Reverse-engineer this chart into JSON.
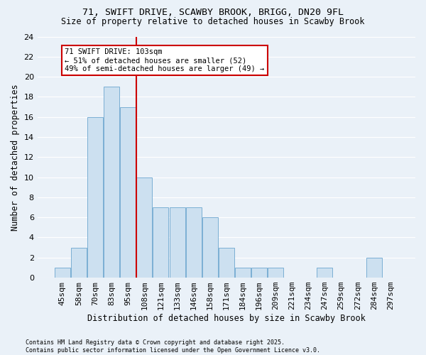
{
  "title1": "71, SWIFT DRIVE, SCAWBY BROOK, BRIGG, DN20 9FL",
  "title2": "Size of property relative to detached houses in Scawby Brook",
  "xlabel": "Distribution of detached houses by size in Scawby Brook",
  "ylabel": "Number of detached properties",
  "categories": [
    "45sqm",
    "58sqm",
    "70sqm",
    "83sqm",
    "95sqm",
    "108sqm",
    "121sqm",
    "133sqm",
    "146sqm",
    "158sqm",
    "171sqm",
    "184sqm",
    "196sqm",
    "209sqm",
    "221sqm",
    "234sqm",
    "247sqm",
    "259sqm",
    "272sqm",
    "284sqm",
    "297sqm"
  ],
  "values": [
    1,
    3,
    16,
    19,
    17,
    10,
    7,
    7,
    7,
    6,
    3,
    1,
    1,
    1,
    0,
    0,
    1,
    0,
    0,
    2,
    0
  ],
  "bar_color": "#cce0f0",
  "bar_edge_color": "#7bafd4",
  "vline_idx": 5,
  "vline_color": "#cc0000",
  "annotation_text": "71 SWIFT DRIVE: 103sqm\n← 51% of detached houses are smaller (52)\n49% of semi-detached houses are larger (49) →",
  "annotation_box_color": "#ffffff",
  "annotation_box_edge": "#cc0000",
  "ylim": [
    0,
    24
  ],
  "yticks": [
    0,
    2,
    4,
    6,
    8,
    10,
    12,
    14,
    16,
    18,
    20,
    22,
    24
  ],
  "footnote": "Contains HM Land Registry data © Crown copyright and database right 2025.\nContains public sector information licensed under the Open Government Licence v3.0.",
  "bg_color": "#eaf1f8",
  "grid_color": "#ffffff",
  "title_fontsize": 9.5,
  "subtitle_fontsize": 8.5,
  "ylabel_fontsize": 8.5,
  "xlabel_fontsize": 8.5,
  "tick_fontsize": 8,
  "annot_fontsize": 7.5,
  "footnote_fontsize": 6
}
